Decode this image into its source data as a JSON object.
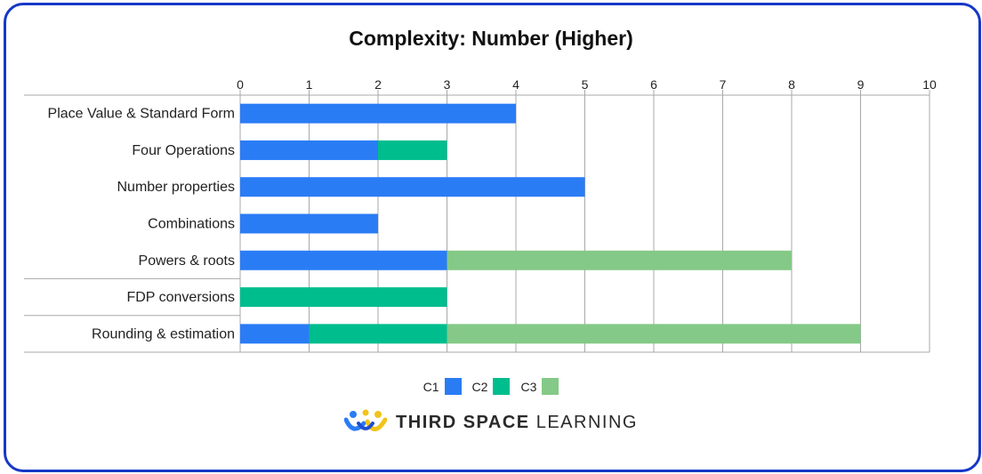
{
  "chart_data": {
    "type": "bar",
    "orientation": "horizontal",
    "stacked": true,
    "title": "Complexity: Number (Higher)",
    "categories": [
      "Place Value & Standard Form",
      "Four Operations",
      "Number properties",
      "Combinations",
      "Powers & roots",
      "FDP conversions",
      "Rounding & estimation"
    ],
    "series": [
      {
        "name": "C1",
        "color": "#2a7cf5",
        "values": [
          4,
          2,
          5,
          2,
          3,
          0,
          1
        ]
      },
      {
        "name": "C2",
        "color": "#00bd8e",
        "values": [
          0,
          1,
          0,
          0,
          0,
          3,
          2
        ]
      },
      {
        "name": "C3",
        "color": "#84c987",
        "values": [
          0,
          0,
          0,
          0,
          5,
          0,
          6
        ]
      }
    ],
    "xlim": [
      0,
      10
    ],
    "xticks": [
      "0",
      "1",
      "2",
      "3",
      "4",
      "5",
      "6",
      "7",
      "8",
      "9",
      "10"
    ],
    "grid": true,
    "legend_position": "bottom"
  },
  "brand": {
    "bold": "THIRD SPACE",
    "light": " LEARNING"
  }
}
